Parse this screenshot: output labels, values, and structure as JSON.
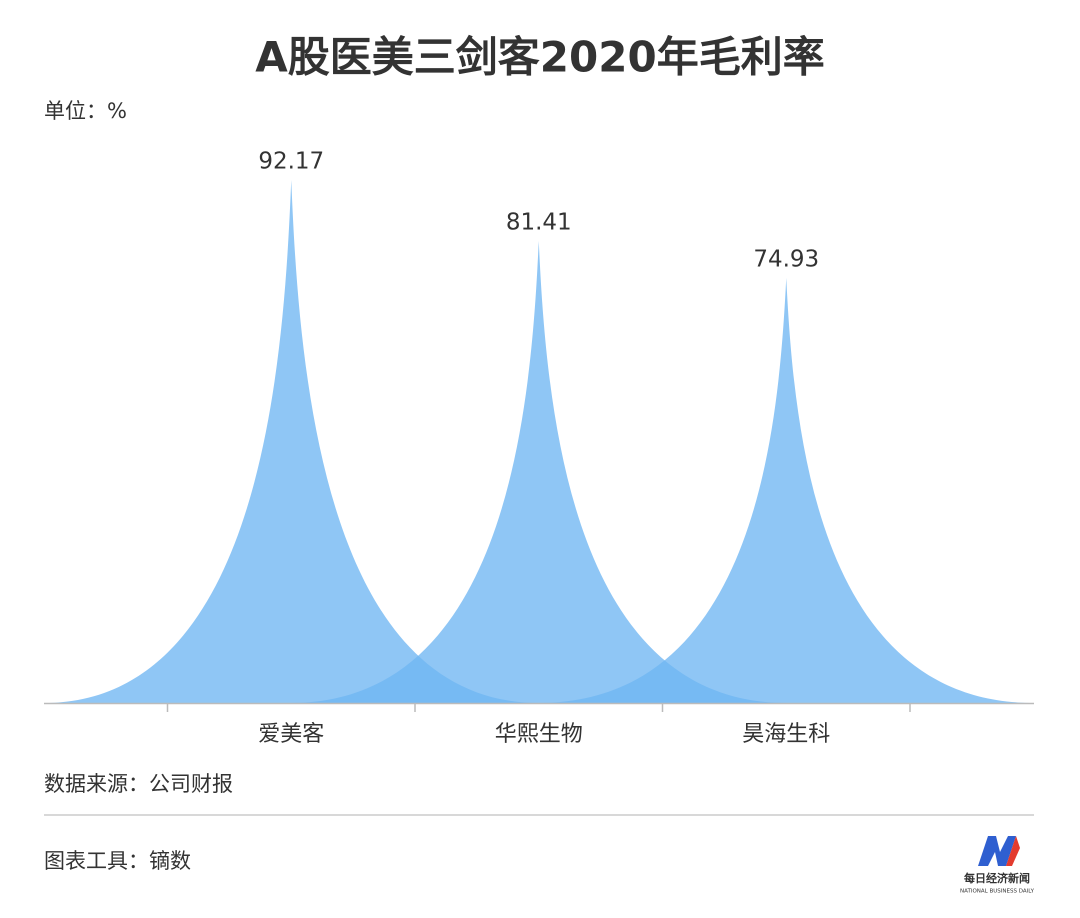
{
  "chart_data": {
    "type": "spike",
    "title": "A股医美三剑客2020年毛利率",
    "unit": "单位：%",
    "categories": [
      "爱美客",
      "华熙生物",
      "昊海生科"
    ],
    "values": [
      92.17,
      81.41,
      74.93
    ],
    "color": "#6fb6f2"
  },
  "footer": {
    "source": "数据来源：公司财报",
    "tool": "图表工具：镝数"
  },
  "logo": {
    "name": "每日经济新闻",
    "english": "NATIONAL BUSINESS DAILY"
  }
}
